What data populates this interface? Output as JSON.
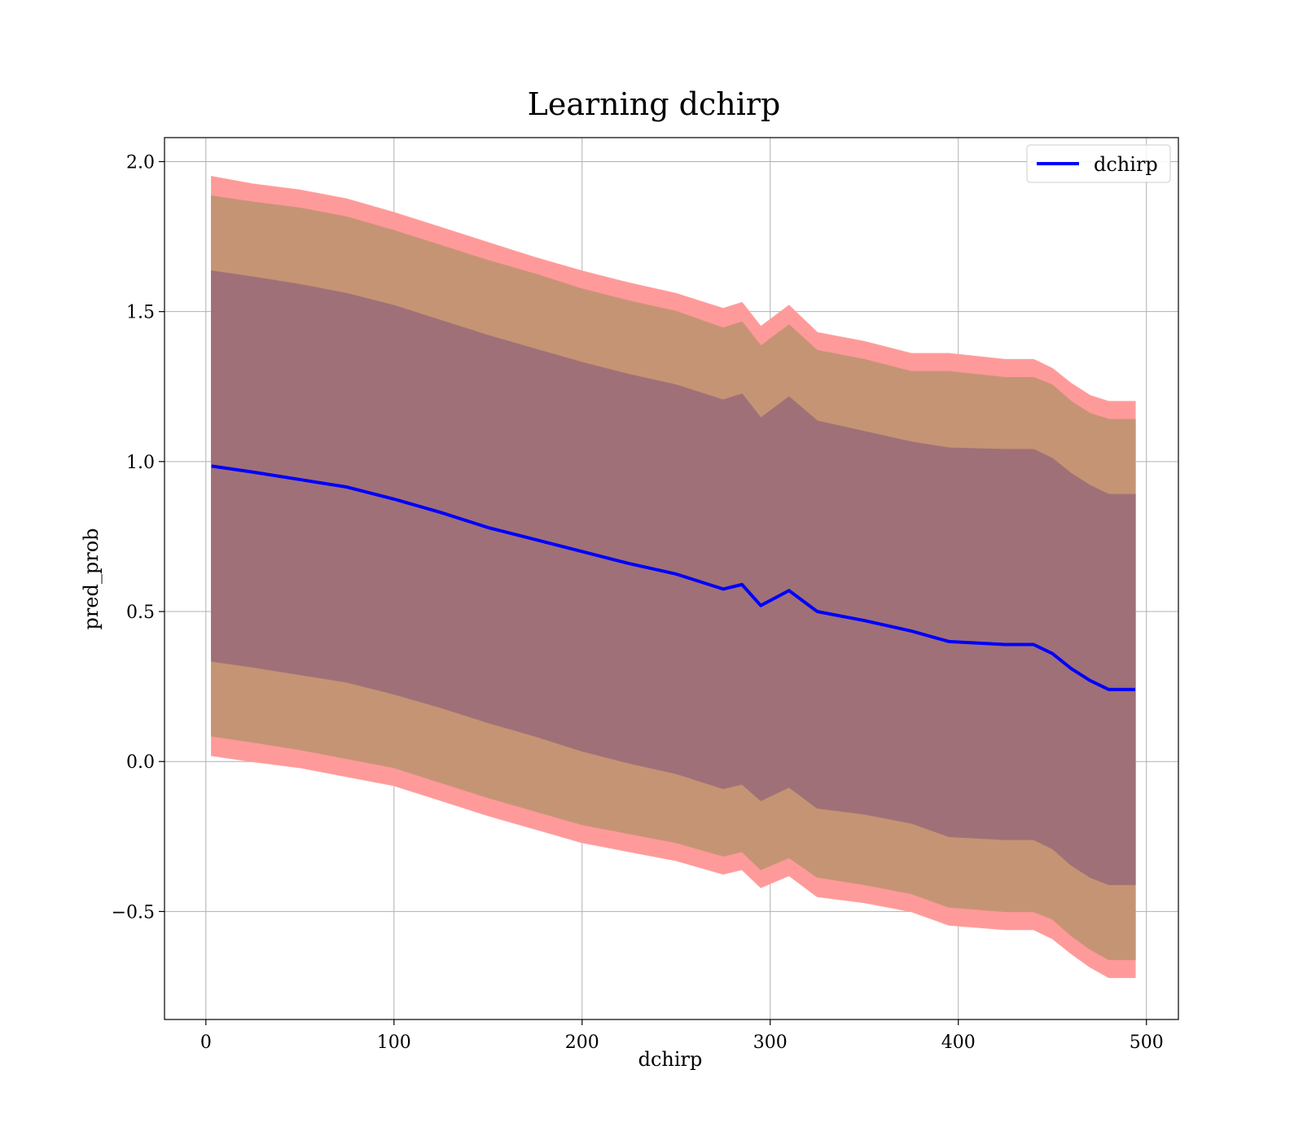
{
  "chart_data": {
    "type": "line",
    "title": "Learning dchirp",
    "xlabel": "dchirp",
    "ylabel": "pred_prob",
    "xlim": [
      -22,
      517
    ],
    "ylim": [
      -0.86,
      2.08
    ],
    "xticks": [
      0,
      100,
      200,
      300,
      400,
      500
    ],
    "yticks": [
      -0.5,
      0.0,
      0.5,
      1.0,
      1.5,
      2.0
    ],
    "xtick_labels": [
      "0",
      "100",
      "200",
      "300",
      "400",
      "500"
    ],
    "ytick_labels": [
      "−0.5",
      "0.0",
      "0.5",
      "1.0",
      "1.5",
      "2.0"
    ],
    "grid": true,
    "legend": {
      "placement": "top-right",
      "entries": [
        "dchirp"
      ]
    },
    "colors": {
      "mean_line": "#0000ff",
      "outer_band": "#ff9a9a",
      "middle_band": "#c59474",
      "inner_band": "#a07078"
    },
    "series": [
      {
        "name": "dchirp",
        "x": [
          3,
          25,
          50,
          75,
          100,
          125,
          150,
          175,
          200,
          225,
          250,
          275,
          285,
          295,
          310,
          325,
          350,
          375,
          395,
          425,
          440,
          450,
          460,
          470,
          480,
          494
        ],
        "y": [
          0.985,
          0.965,
          0.94,
          0.915,
          0.875,
          0.83,
          0.78,
          0.74,
          0.7,
          0.66,
          0.625,
          0.575,
          0.59,
          0.52,
          0.57,
          0.5,
          0.47,
          0.435,
          0.4,
          0.39,
          0.39,
          0.36,
          0.31,
          0.27,
          0.24,
          0.24
        ]
      }
    ],
    "bands": [
      {
        "level": "outer",
        "x": [
          3,
          25,
          50,
          75,
          100,
          125,
          150,
          175,
          200,
          225,
          250,
          275,
          285,
          295,
          310,
          325,
          350,
          375,
          395,
          425,
          440,
          450,
          460,
          470,
          480,
          494
        ],
        "upper": [
          1.95,
          1.925,
          1.905,
          1.875,
          1.83,
          1.78,
          1.73,
          1.68,
          1.635,
          1.595,
          1.56,
          1.51,
          1.53,
          1.45,
          1.52,
          1.43,
          1.4,
          1.36,
          1.36,
          1.34,
          1.34,
          1.31,
          1.26,
          1.22,
          1.2,
          1.2
        ],
        "lower": [
          0.02,
          0.0,
          -0.02,
          -0.05,
          -0.08,
          -0.13,
          -0.18,
          -0.225,
          -0.27,
          -0.3,
          -0.33,
          -0.375,
          -0.36,
          -0.42,
          -0.38,
          -0.45,
          -0.47,
          -0.5,
          -0.545,
          -0.56,
          -0.56,
          -0.59,
          -0.64,
          -0.685,
          -0.72,
          -0.72
        ]
      },
      {
        "level": "middle",
        "x": [
          3,
          25,
          50,
          75,
          100,
          125,
          150,
          175,
          200,
          225,
          250,
          275,
          285,
          295,
          310,
          325,
          350,
          375,
          395,
          425,
          440,
          450,
          460,
          470,
          480,
          494
        ],
        "upper": [
          1.885,
          1.865,
          1.845,
          1.815,
          1.77,
          1.72,
          1.67,
          1.625,
          1.575,
          1.535,
          1.5,
          1.445,
          1.465,
          1.385,
          1.455,
          1.37,
          1.34,
          1.3,
          1.3,
          1.28,
          1.28,
          1.255,
          1.2,
          1.16,
          1.14,
          1.14
        ],
        "lower": [
          0.085,
          0.065,
          0.04,
          0.01,
          -0.02,
          -0.07,
          -0.12,
          -0.165,
          -0.21,
          -0.24,
          -0.27,
          -0.315,
          -0.3,
          -0.36,
          -0.32,
          -0.385,
          -0.41,
          -0.44,
          -0.485,
          -0.5,
          -0.5,
          -0.525,
          -0.58,
          -0.625,
          -0.66,
          -0.66
        ]
      },
      {
        "level": "inner",
        "x": [
          3,
          25,
          50,
          75,
          100,
          125,
          150,
          175,
          200,
          225,
          250,
          275,
          285,
          295,
          310,
          325,
          350,
          375,
          395,
          425,
          440,
          450,
          460,
          470,
          480,
          494
        ],
        "upper": [
          1.635,
          1.615,
          1.59,
          1.56,
          1.52,
          1.47,
          1.42,
          1.375,
          1.33,
          1.29,
          1.255,
          1.205,
          1.225,
          1.145,
          1.215,
          1.135,
          1.1,
          1.065,
          1.045,
          1.04,
          1.04,
          1.01,
          0.96,
          0.92,
          0.89,
          0.89
        ],
        "lower": [
          0.335,
          0.315,
          0.29,
          0.265,
          0.225,
          0.18,
          0.13,
          0.085,
          0.035,
          -0.005,
          -0.04,
          -0.09,
          -0.075,
          -0.13,
          -0.085,
          -0.155,
          -0.175,
          -0.205,
          -0.25,
          -0.26,
          -0.26,
          -0.29,
          -0.345,
          -0.385,
          -0.41,
          -0.41
        ]
      }
    ]
  }
}
